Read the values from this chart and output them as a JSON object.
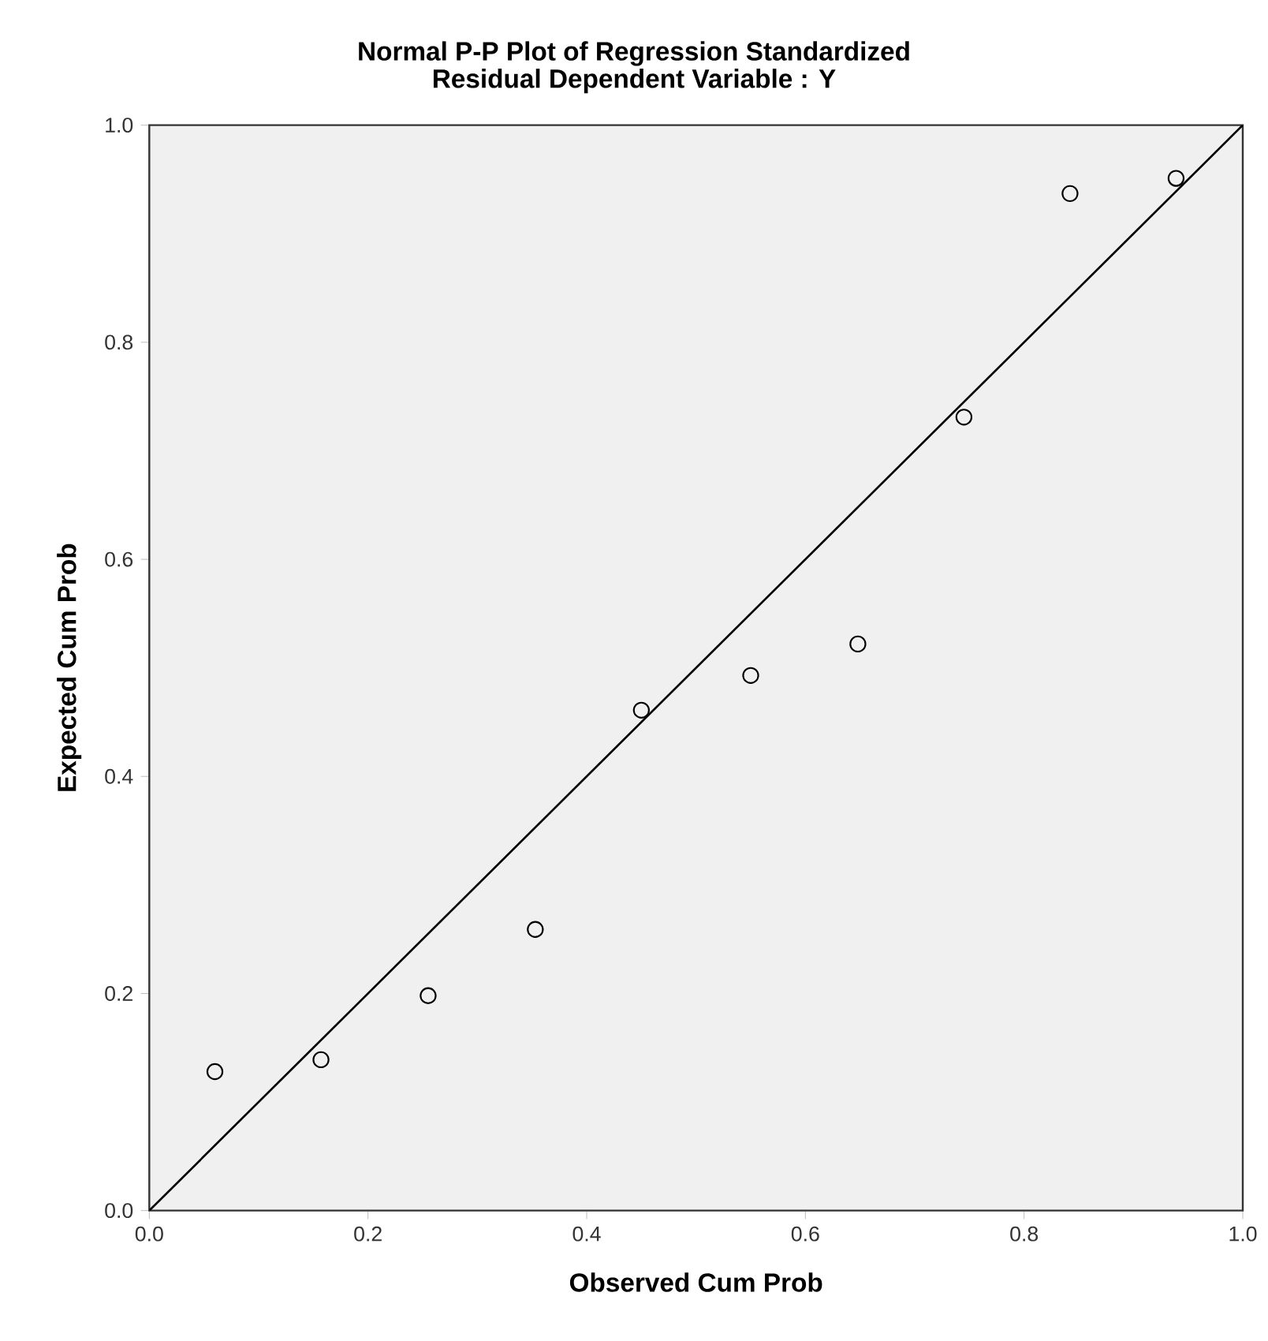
{
  "chart_data": {
    "type": "scatter",
    "title": "Normal P-P Plot of Regression Standardized",
    "subtitle": "Residual Dependent Variable : Y",
    "xlabel": "Observed Cum Prob",
    "ylabel": "Expected Cum Prob",
    "xlim": [
      0,
      1
    ],
    "ylim": [
      0,
      1
    ],
    "xticks": [
      {
        "value": 0,
        "label": "0.0"
      },
      {
        "value": 0.2,
        "label": "0.2"
      },
      {
        "value": 0.4,
        "label": "0.4"
      },
      {
        "value": 0.6,
        "label": "0.6"
      },
      {
        "value": 0.8,
        "label": "0.8"
      },
      {
        "value": 1,
        "label": "1.0"
      }
    ],
    "yticks": [
      {
        "value": 0,
        "label": "0.0"
      },
      {
        "value": 0.2,
        "label": "0.2"
      },
      {
        "value": 0.4,
        "label": "0.4"
      },
      {
        "value": 0.6,
        "label": "0.6"
      },
      {
        "value": 0.8,
        "label": "0.8"
      },
      {
        "value": 1,
        "label": "1.0"
      }
    ],
    "grid": false,
    "series": [
      {
        "marker": "circle",
        "color": "#000000",
        "x": [
          0.06,
          0.157,
          0.255,
          0.353,
          0.45,
          0.55,
          0.648,
          0.745,
          0.842,
          0.939
        ],
        "values": [
          0.128,
          0.139,
          0.198,
          0.259,
          0.461,
          0.493,
          0.522,
          0.731,
          0.937,
          0.951
        ]
      },
      {
        "type": "line",
        "marker": "none",
        "color": "#000000",
        "x": [
          0,
          1
        ],
        "values": [
          0,
          1
        ]
      }
    ]
  }
}
